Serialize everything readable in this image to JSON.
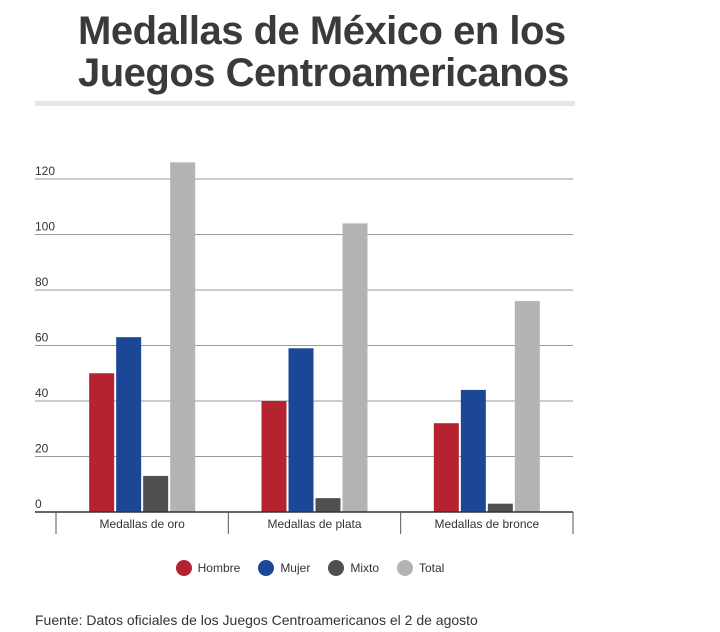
{
  "title": "Medallas de México en los Juegos Centroamericanos",
  "source": "Fuente: Datos oficiales de los Juegos Centroamericanos el 2 de agosto",
  "chart_data": {
    "type": "bar",
    "categories": [
      "Medallas de oro",
      "Medallas de plata",
      "Medallas de bronce"
    ],
    "series": [
      {
        "name": "Hombre",
        "color": "#b52330",
        "values": [
          50,
          40,
          32
        ]
      },
      {
        "name": "Mujer",
        "color": "#1c4797",
        "values": [
          63,
          59,
          44
        ]
      },
      {
        "name": "Mixto",
        "color": "#505050",
        "values": [
          13,
          5,
          3
        ]
      },
      {
        "name": "Total",
        "color": "#b3b3b3",
        "values": [
          126,
          104,
          76
        ]
      }
    ],
    "yticks": [
      "0",
      "20",
      "40",
      "60",
      "80",
      "100",
      "120"
    ],
    "ylim": [
      0,
      120
    ],
    "grid": true,
    "legend": "bottom"
  }
}
